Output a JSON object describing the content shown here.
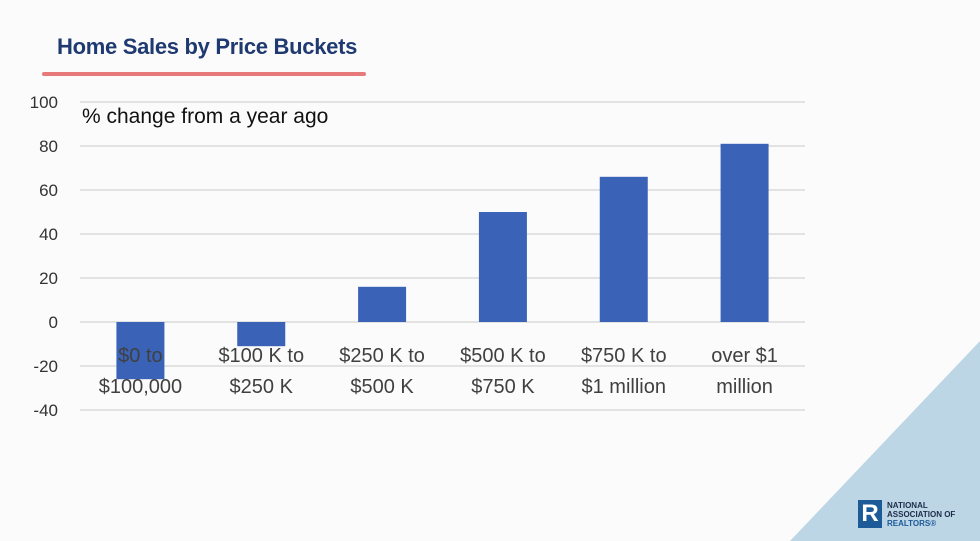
{
  "slide": {
    "title": "Home Sales by Price Buckets"
  },
  "logo": {
    "line1": "NATIONAL",
    "line2": "ASSOCIATION OF",
    "line3": "REALTORS®",
    "mark": "R"
  },
  "chart_data": {
    "type": "bar",
    "title": "",
    "annotation": "% change from a year ago",
    "categories": [
      "$0 to $100,000",
      "$100 K to $250 K",
      "$250 K to $500 K",
      "$500 K to $750 K",
      "$750 K to $1 million",
      "over $1 million"
    ],
    "category_lines": [
      [
        "$0 to",
        "$100,000"
      ],
      [
        "$100 K to",
        "$250 K"
      ],
      [
        "$250 K to",
        "$500 K"
      ],
      [
        "$500 K to",
        "$750 K"
      ],
      [
        "$750 K to",
        "$1 million"
      ],
      [
        "over $1",
        "million"
      ]
    ],
    "values": [
      -26,
      -11,
      16,
      50,
      66,
      81
    ],
    "ylim": [
      -40,
      100
    ],
    "yticks": [
      -40,
      -20,
      0,
      20,
      40,
      60,
      80,
      100
    ],
    "grid": true,
    "bar_color": "#3a63b8"
  }
}
